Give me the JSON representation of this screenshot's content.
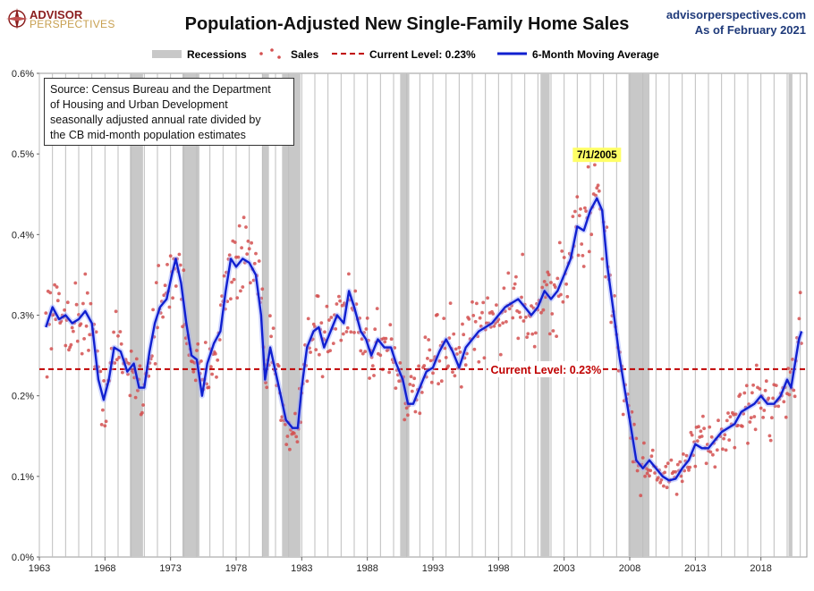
{
  "branding": {
    "logo_line1": "ADVISOR",
    "logo_line2": "PERSPECTIVES",
    "site": "advisorperspectives.com",
    "as_of": "As of February 2021"
  },
  "source_note": {
    "line1": "Source: Census Bureau and the Department",
    "line2": "of Housing and Urban Development",
    "line3": "seasonally adjusted annual rate divided by",
    "line4": "the CB mid-month population estimates"
  },
  "chart_data": {
    "type": "line",
    "title": "Population-Adjusted New Single-Family Home Sales",
    "xlabel": "",
    "ylabel": "",
    "xlim": [
      1963.0,
      2021.5
    ],
    "ylim": [
      0.0,
      0.6
    ],
    "x_ticks": [
      1963,
      1968,
      1973,
      1978,
      1983,
      1988,
      1993,
      1998,
      2003,
      2008,
      2013,
      2018
    ],
    "y_ticks": [
      {
        "value": 0.0,
        "label": "0.0%"
      },
      {
        "value": 0.1,
        "label": "0.1%"
      },
      {
        "value": 0.2,
        "label": "0.2%"
      },
      {
        "value": 0.3,
        "label": "0.3%"
      },
      {
        "value": 0.4,
        "label": "0.4%"
      },
      {
        "value": 0.5,
        "label": "0.5%"
      },
      {
        "value": 0.6,
        "label": "0.6%"
      }
    ],
    "grid": "vertical",
    "legend": {
      "position": "top",
      "entries": [
        {
          "label": "Recessions",
          "color": "#c8c8c8",
          "text_color": "#888888"
        },
        {
          "label": "Sales",
          "color": "#d45050",
          "text_color": "#c00000"
        },
        {
          "label": "Current Level: 0.23%",
          "color": "#c00000",
          "text_color": "#c00000"
        },
        {
          "label": "6-Month Moving Average",
          "color": "#1020d0",
          "text_color": "#1020d0"
        }
      ]
    },
    "recessions": [
      [
        1969.9,
        1970.9
      ],
      [
        1973.9,
        1975.2
      ],
      [
        1980.0,
        1980.5
      ],
      [
        1981.5,
        1982.9
      ],
      [
        1990.5,
        1991.2
      ],
      [
        2001.2,
        2001.9
      ],
      [
        2007.9,
        2009.5
      ],
      [
        2020.1,
        2020.4
      ]
    ],
    "current_level": {
      "value": 0.233,
      "label": "Current Level: 0.23%",
      "label_x": 1997.4
    },
    "annotation": {
      "label": "7/1/2005",
      "x": 2005.5,
      "y": 0.5,
      "text_color": "#000000",
      "background": "#ffff66"
    },
    "series": [
      {
        "name": "6-Month Moving Average",
        "color": "#1020d0",
        "points": [
          [
            1963.5,
            0.285
          ],
          [
            1964.0,
            0.31
          ],
          [
            1964.5,
            0.295
          ],
          [
            1965.0,
            0.3
          ],
          [
            1965.5,
            0.29
          ],
          [
            1966.0,
            0.295
          ],
          [
            1966.5,
            0.305
          ],
          [
            1967.0,
            0.29
          ],
          [
            1967.5,
            0.22
          ],
          [
            1967.9,
            0.195
          ],
          [
            1968.3,
            0.22
          ],
          [
            1968.7,
            0.26
          ],
          [
            1969.2,
            0.255
          ],
          [
            1969.7,
            0.23
          ],
          [
            1970.2,
            0.24
          ],
          [
            1970.6,
            0.21
          ],
          [
            1971.0,
            0.21
          ],
          [
            1971.4,
            0.255
          ],
          [
            1971.8,
            0.29
          ],
          [
            1972.2,
            0.31
          ],
          [
            1972.7,
            0.32
          ],
          [
            1973.1,
            0.35
          ],
          [
            1973.4,
            0.37
          ],
          [
            1973.8,
            0.34
          ],
          [
            1974.2,
            0.29
          ],
          [
            1974.6,
            0.25
          ],
          [
            1975.0,
            0.245
          ],
          [
            1975.4,
            0.2
          ],
          [
            1975.8,
            0.24
          ],
          [
            1976.3,
            0.265
          ],
          [
            1976.8,
            0.28
          ],
          [
            1977.2,
            0.33
          ],
          [
            1977.6,
            0.37
          ],
          [
            1978.0,
            0.36
          ],
          [
            1978.5,
            0.37
          ],
          [
            1979.0,
            0.365
          ],
          [
            1979.5,
            0.35
          ],
          [
            1979.9,
            0.3
          ],
          [
            1980.2,
            0.22
          ],
          [
            1980.6,
            0.26
          ],
          [
            1981.0,
            0.23
          ],
          [
            1981.4,
            0.2
          ],
          [
            1981.8,
            0.17
          ],
          [
            1982.3,
            0.16
          ],
          [
            1982.7,
            0.16
          ],
          [
            1983.0,
            0.21
          ],
          [
            1983.4,
            0.26
          ],
          [
            1983.9,
            0.28
          ],
          [
            1984.3,
            0.285
          ],
          [
            1984.7,
            0.26
          ],
          [
            1985.2,
            0.28
          ],
          [
            1985.7,
            0.3
          ],
          [
            1986.2,
            0.29
          ],
          [
            1986.6,
            0.33
          ],
          [
            1987.0,
            0.31
          ],
          [
            1987.5,
            0.28
          ],
          [
            1987.9,
            0.27
          ],
          [
            1988.3,
            0.25
          ],
          [
            1988.8,
            0.27
          ],
          [
            1989.3,
            0.26
          ],
          [
            1989.8,
            0.26
          ],
          [
            1990.2,
            0.24
          ],
          [
            1990.7,
            0.22
          ],
          [
            1991.1,
            0.19
          ],
          [
            1991.5,
            0.19
          ],
          [
            1992.0,
            0.21
          ],
          [
            1992.5,
            0.23
          ],
          [
            1993.0,
            0.235
          ],
          [
            1993.5,
            0.255
          ],
          [
            1994.0,
            0.27
          ],
          [
            1994.5,
            0.255
          ],
          [
            1995.0,
            0.235
          ],
          [
            1995.5,
            0.26
          ],
          [
            1996.0,
            0.27
          ],
          [
            1996.5,
            0.28
          ],
          [
            1997.0,
            0.285
          ],
          [
            1997.5,
            0.29
          ],
          [
            1998.0,
            0.3
          ],
          [
            1998.5,
            0.31
          ],
          [
            1999.0,
            0.315
          ],
          [
            1999.5,
            0.32
          ],
          [
            2000.0,
            0.31
          ],
          [
            2000.5,
            0.3
          ],
          [
            2001.0,
            0.31
          ],
          [
            2001.5,
            0.33
          ],
          [
            2002.0,
            0.32
          ],
          [
            2002.5,
            0.33
          ],
          [
            2003.0,
            0.35
          ],
          [
            2003.5,
            0.37
          ],
          [
            2004.0,
            0.41
          ],
          [
            2004.5,
            0.405
          ],
          [
            2005.0,
            0.43
          ],
          [
            2005.5,
            0.445
          ],
          [
            2005.9,
            0.43
          ],
          [
            2006.3,
            0.36
          ],
          [
            2006.8,
            0.3
          ],
          [
            2007.2,
            0.25
          ],
          [
            2007.6,
            0.21
          ],
          [
            2008.0,
            0.17
          ],
          [
            2008.5,
            0.12
          ],
          [
            2009.0,
            0.11
          ],
          [
            2009.5,
            0.12
          ],
          [
            2010.0,
            0.11
          ],
          [
            2010.5,
            0.1
          ],
          [
            2011.0,
            0.095
          ],
          [
            2011.5,
            0.097
          ],
          [
            2012.0,
            0.11
          ],
          [
            2012.5,
            0.12
          ],
          [
            2013.0,
            0.14
          ],
          [
            2013.5,
            0.135
          ],
          [
            2014.0,
            0.135
          ],
          [
            2014.5,
            0.145
          ],
          [
            2015.0,
            0.155
          ],
          [
            2015.5,
            0.16
          ],
          [
            2016.0,
            0.165
          ],
          [
            2016.5,
            0.18
          ],
          [
            2017.0,
            0.185
          ],
          [
            2017.5,
            0.19
          ],
          [
            2018.0,
            0.2
          ],
          [
            2018.5,
            0.19
          ],
          [
            2019.0,
            0.19
          ],
          [
            2019.5,
            0.2
          ],
          [
            2020.0,
            0.22
          ],
          [
            2020.3,
            0.21
          ],
          [
            2020.6,
            0.24
          ],
          [
            2020.9,
            0.27
          ],
          [
            2021.1,
            0.28
          ]
        ]
      }
    ]
  }
}
